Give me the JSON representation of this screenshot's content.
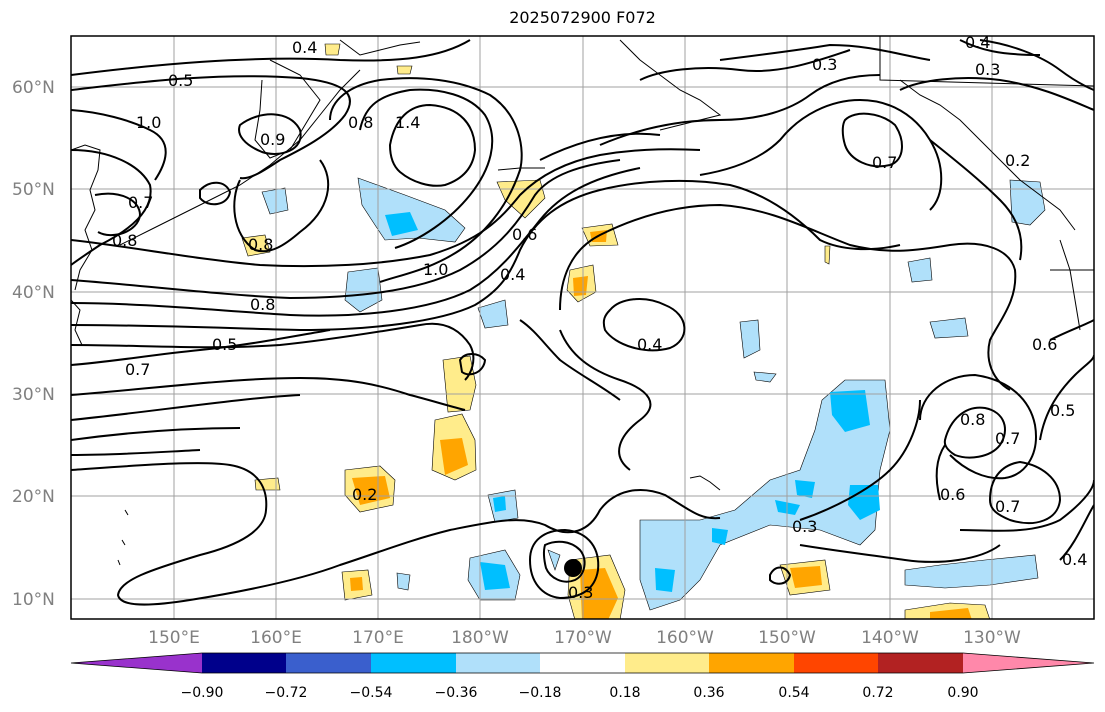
{
  "map": {
    "title": "2025072900 F072",
    "lat_labels": [
      "60°N",
      "50°N",
      "40°N",
      "30°N",
      "20°N",
      "10°N"
    ],
    "lon_labels": [
      "150°E",
      "160°E",
      "170°E",
      "180°W",
      "170°W",
      "160°W",
      "150°W",
      "140°W",
      "130°W"
    ],
    "contour_labels": [
      "0.4",
      "0.5",
      "1.0",
      "0.7",
      "0.8",
      "0.9",
      "0.8",
      "1.4",
      "0.8",
      "0.6",
      "0.4",
      "1.0",
      "0.8",
      "0.5",
      "0.7",
      "0.3",
      "0.3",
      "0.4",
      "0.7",
      "0.4",
      "0.2",
      "0.6",
      "0.8",
      "0.7",
      "0.5",
      "0.6",
      "0.7",
      "0.4",
      "0.2",
      "0.3",
      "0.3"
    ],
    "colorbar": {
      "colors": [
        "#9932cc",
        "#00008b",
        "#3a5fcd",
        "#00bfff",
        "#b0e0fa",
        "#ffffff",
        "#ffec8b",
        "#ffa500",
        "#ff4500",
        "#b22222",
        "#ff88aa"
      ],
      "ticks": [
        "−0.90",
        "−0.72",
        "−0.54",
        "−0.36",
        "−0.18",
        "0.18",
        "0.36",
        "0.54",
        "0.72",
        "0.90"
      ]
    },
    "fill_colors": {
      "light_blue": "#b0e0fa",
      "blue": "#00bfff",
      "light_yellow": "#ffec8b",
      "orange": "#ffa500"
    }
  }
}
